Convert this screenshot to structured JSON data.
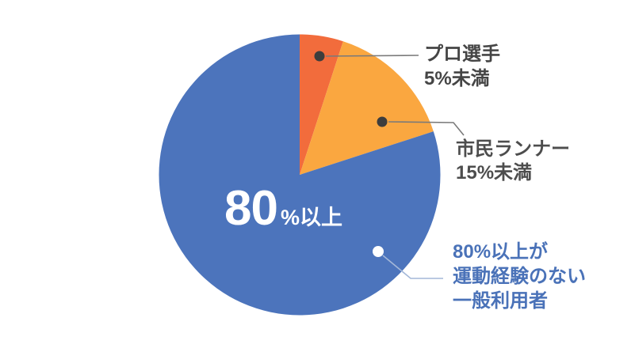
{
  "chart_data": {
    "type": "pie",
    "title": "",
    "start_angle_deg": 0,
    "direction": "clockwise",
    "legend_position": "none",
    "slices": [
      {
        "name": "pro-athletes",
        "label": "プロ選手",
        "value_label": "5%未満",
        "value_pct": 5,
        "color": "#f26c3c"
      },
      {
        "name": "citizen-runners",
        "label": "市民ランナー",
        "value_label": "15%未満",
        "value_pct": 15,
        "color": "#faa740"
      },
      {
        "name": "general-users",
        "label": "80%以上が運動経験のない一般利用者",
        "value_label": "80%以上",
        "value_pct": 80,
        "color": "#4c74bc"
      }
    ],
    "center_label": {
      "big": "80",
      "small": "%以上",
      "color": "#ffffff"
    }
  },
  "labels": {
    "pro": {
      "line1": "プロ選手",
      "line2": "5%未満",
      "color": "#454545"
    },
    "citizen": {
      "line1": "市民ランナー",
      "line2": "15%未満",
      "color": "#4d4d4d"
    },
    "general": {
      "line1": "80%以上が",
      "line2": "運動経験のない",
      "line3": "一般利用者",
      "color": "#4a72b8"
    }
  },
  "callouts": {
    "pro": {
      "dot_color": "#3d3d3d",
      "line_color": "#7a7a7a"
    },
    "citizen": {
      "dot_color": "#3d3d3d",
      "line_color": "#7a7a7a"
    },
    "general": {
      "dot_color": "#ffffff",
      "line_color": "#a3b7d8"
    }
  },
  "background": "#ffffff"
}
